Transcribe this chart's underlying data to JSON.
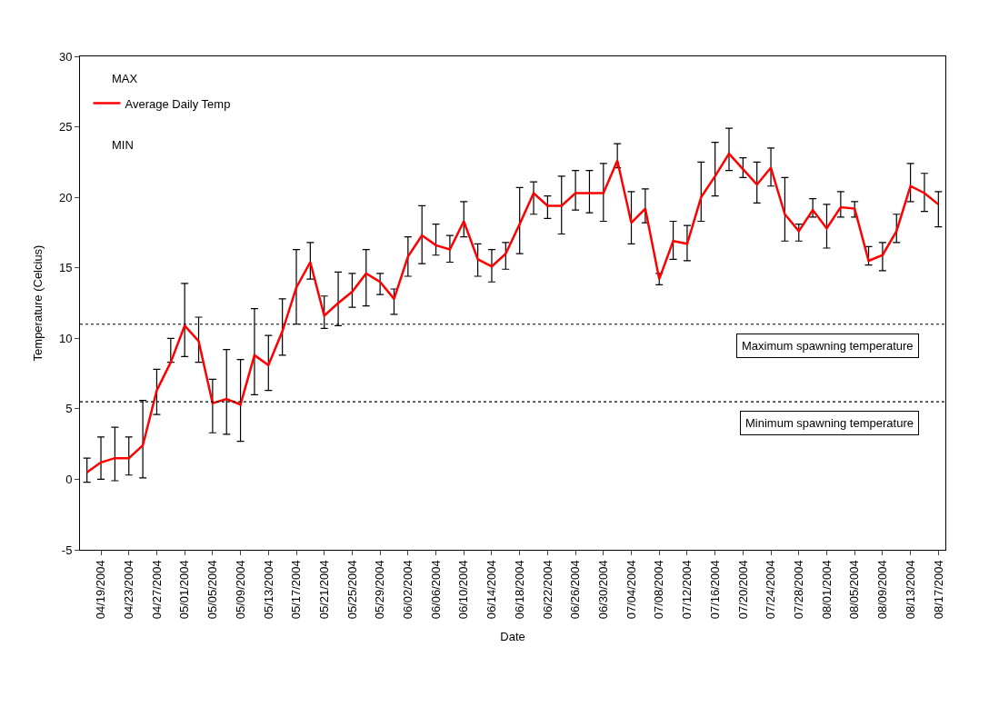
{
  "chart_data": {
    "type": "line",
    "xlabel": "Date",
    "ylabel": "Temperature (Celcius)",
    "x": [
      "2004-04-17",
      "2004-04-19",
      "2004-04-21",
      "2004-04-23",
      "2004-04-25",
      "2004-04-27",
      "2004-04-29",
      "2004-05-01",
      "2004-05-03",
      "2004-05-05",
      "2004-05-07",
      "2004-05-09",
      "2004-05-11",
      "2004-05-13",
      "2004-05-15",
      "2004-05-17",
      "2004-05-19",
      "2004-05-21",
      "2004-05-23",
      "2004-05-25",
      "2004-05-27",
      "2004-05-29",
      "2004-05-31",
      "2004-06-02",
      "2004-06-04",
      "2004-06-06",
      "2004-06-08",
      "2004-06-10",
      "2004-06-12",
      "2004-06-14",
      "2004-06-16",
      "2004-06-18",
      "2004-06-20",
      "2004-06-22",
      "2004-06-24",
      "2004-06-26",
      "2004-06-28",
      "2004-06-30",
      "2004-07-02",
      "2004-07-04",
      "2004-07-06",
      "2004-07-08",
      "2004-07-10",
      "2004-07-12",
      "2004-07-14",
      "2004-07-16",
      "2004-07-18",
      "2004-07-20",
      "2004-07-22",
      "2004-07-24",
      "2004-07-26",
      "2004-07-28",
      "2004-07-30",
      "2004-08-01",
      "2004-08-03",
      "2004-08-05",
      "2004-08-07",
      "2004-08-09",
      "2004-08-11",
      "2004-08-13",
      "2004-08-15",
      "2004-08-17"
    ],
    "series": [
      {
        "name": "Average Daily Temp",
        "color": "#ff0000",
        "values": [
          0.5,
          1.2,
          1.5,
          1.5,
          2.4,
          6.3,
          8.3,
          10.9,
          9.8,
          5.4,
          5.7,
          5.3,
          8.8,
          8.1,
          10.5,
          13.6,
          15.4,
          11.6,
          12.5,
          13.3,
          14.6,
          14.0,
          12.8,
          15.8,
          17.3,
          16.6,
          16.3,
          18.3,
          15.6,
          15.1,
          16.0,
          18.1,
          20.3,
          19.4,
          19.4,
          20.3,
          20.3,
          20.3,
          22.6,
          18.2,
          19.2,
          14.2,
          16.9,
          16.7,
          20.0,
          21.5,
          23.1,
          22.0,
          20.9,
          22.1,
          18.8,
          17.6,
          19.1,
          17.8,
          19.3,
          19.2,
          15.5,
          15.9,
          17.6,
          20.8,
          20.3,
          19.5
        ],
        "errors": [
          [
            -0.2,
            1.5
          ],
          [
            0.0,
            3.0
          ],
          [
            -0.1,
            3.7
          ],
          [
            0.3,
            3.0
          ],
          [
            0.1,
            5.6
          ],
          [
            4.6,
            7.8
          ],
          [
            8.3,
            10.0
          ],
          [
            8.7,
            13.9
          ],
          [
            8.3,
            11.5
          ],
          [
            3.3,
            7.1
          ],
          [
            3.2,
            9.2
          ],
          [
            2.7,
            8.5
          ],
          [
            6.0,
            12.1
          ],
          [
            6.3,
            10.2
          ],
          [
            8.8,
            12.8
          ],
          [
            11.0,
            16.3
          ],
          [
            14.2,
            16.8
          ],
          [
            10.7,
            13.0
          ],
          [
            10.9,
            14.7
          ],
          [
            12.2,
            14.6
          ],
          [
            12.3,
            16.3
          ],
          [
            13.1,
            14.6
          ],
          [
            11.7,
            13.5
          ],
          [
            14.4,
            17.2
          ],
          [
            15.3,
            19.4
          ],
          [
            15.9,
            18.1
          ],
          [
            15.4,
            17.3
          ],
          [
            17.2,
            19.7
          ],
          [
            14.4,
            16.7
          ],
          [
            14.0,
            16.3
          ],
          [
            14.9,
            16.8
          ],
          [
            16.0,
            20.7
          ],
          [
            18.8,
            21.1
          ],
          [
            18.5,
            20.1
          ],
          [
            17.4,
            21.5
          ],
          [
            19.1,
            21.9
          ],
          [
            18.9,
            21.9
          ],
          [
            18.3,
            22.4
          ],
          [
            22.1,
            23.8
          ],
          [
            16.7,
            20.4
          ],
          [
            18.2,
            20.6
          ],
          [
            13.8,
            14.6
          ],
          [
            15.6,
            18.3
          ],
          [
            15.5,
            18.0
          ],
          [
            18.3,
            22.5
          ],
          [
            20.1,
            23.9
          ],
          [
            21.9,
            24.9
          ],
          [
            21.4,
            22.8
          ],
          [
            19.6,
            22.5
          ],
          [
            20.8,
            23.5
          ],
          [
            16.9,
            21.4
          ],
          [
            16.9,
            18.1
          ],
          [
            18.6,
            19.9
          ],
          [
            16.4,
            19.5
          ],
          [
            18.6,
            20.4
          ],
          [
            18.6,
            19.7
          ],
          [
            15.2,
            16.5
          ],
          [
            14.8,
            16.8
          ],
          [
            16.8,
            18.8
          ],
          [
            19.7,
            22.4
          ],
          [
            19.0,
            21.7
          ],
          [
            17.9,
            20.4
          ]
        ]
      }
    ],
    "xlim": [
      "2004-04-16",
      "2004-08-18"
    ],
    "xticks": [
      {
        "value": "2004-04-19",
        "label": "04/19/2004"
      },
      {
        "value": "2004-04-23",
        "label": "04/23/2004"
      },
      {
        "value": "2004-04-27",
        "label": "04/27/2004"
      },
      {
        "value": "2004-05-01",
        "label": "05/01/2004"
      },
      {
        "value": "2004-05-05",
        "label": "05/05/2004"
      },
      {
        "value": "2004-05-09",
        "label": "05/09/2004"
      },
      {
        "value": "2004-05-13",
        "label": "05/13/2004"
      },
      {
        "value": "2004-05-17",
        "label": "05/17/2004"
      },
      {
        "value": "2004-05-21",
        "label": "05/21/2004"
      },
      {
        "value": "2004-05-25",
        "label": "05/25/2004"
      },
      {
        "value": "2004-05-29",
        "label": "05/29/2004"
      },
      {
        "value": "2004-06-02",
        "label": "06/02/2004"
      },
      {
        "value": "2004-06-06",
        "label": "06/06/2004"
      },
      {
        "value": "2004-06-10",
        "label": "06/10/2004"
      },
      {
        "value": "2004-06-14",
        "label": "06/14/2004"
      },
      {
        "value": "2004-06-18",
        "label": "06/18/2004"
      },
      {
        "value": "2004-06-22",
        "label": "06/22/2004"
      },
      {
        "value": "2004-06-26",
        "label": "06/26/2004"
      },
      {
        "value": "2004-06-30",
        "label": "06/30/2004"
      },
      {
        "value": "2004-07-04",
        "label": "07/04/2004"
      },
      {
        "value": "2004-07-08",
        "label": "07/08/2004"
      },
      {
        "value": "2004-07-12",
        "label": "07/12/2004"
      },
      {
        "value": "2004-07-16",
        "label": "07/16/2004"
      },
      {
        "value": "2004-07-20",
        "label": "07/20/2004"
      },
      {
        "value": "2004-07-24",
        "label": "07/24/2004"
      },
      {
        "value": "2004-07-28",
        "label": "07/28/2004"
      },
      {
        "value": "2004-08-01",
        "label": "08/01/2004"
      },
      {
        "value": "2004-08-05",
        "label": "08/05/2004"
      },
      {
        "value": "2004-08-09",
        "label": "08/09/2004"
      },
      {
        "value": "2004-08-13",
        "label": "08/13/2004"
      },
      {
        "value": "2004-08-17",
        "label": "08/17/2004"
      }
    ],
    "ylim": [
      -5,
      30
    ],
    "yticks": [
      -5,
      0,
      5,
      10,
      15,
      20,
      25,
      30
    ],
    "ref_lines": [
      {
        "axis": "y",
        "value": 11,
        "label": "Maximum spawning temperature",
        "color": "#000000",
        "line_style": "dotted"
      },
      {
        "axis": "y",
        "value": 5.5,
        "label": "Minimum spawning temperature",
        "color": "#000000",
        "line_style": "dotted"
      }
    ],
    "annotations": [
      "MAX",
      "MIN"
    ],
    "legend": "top left",
    "grid": false,
    "marker": "none",
    "line_style": "solid"
  }
}
